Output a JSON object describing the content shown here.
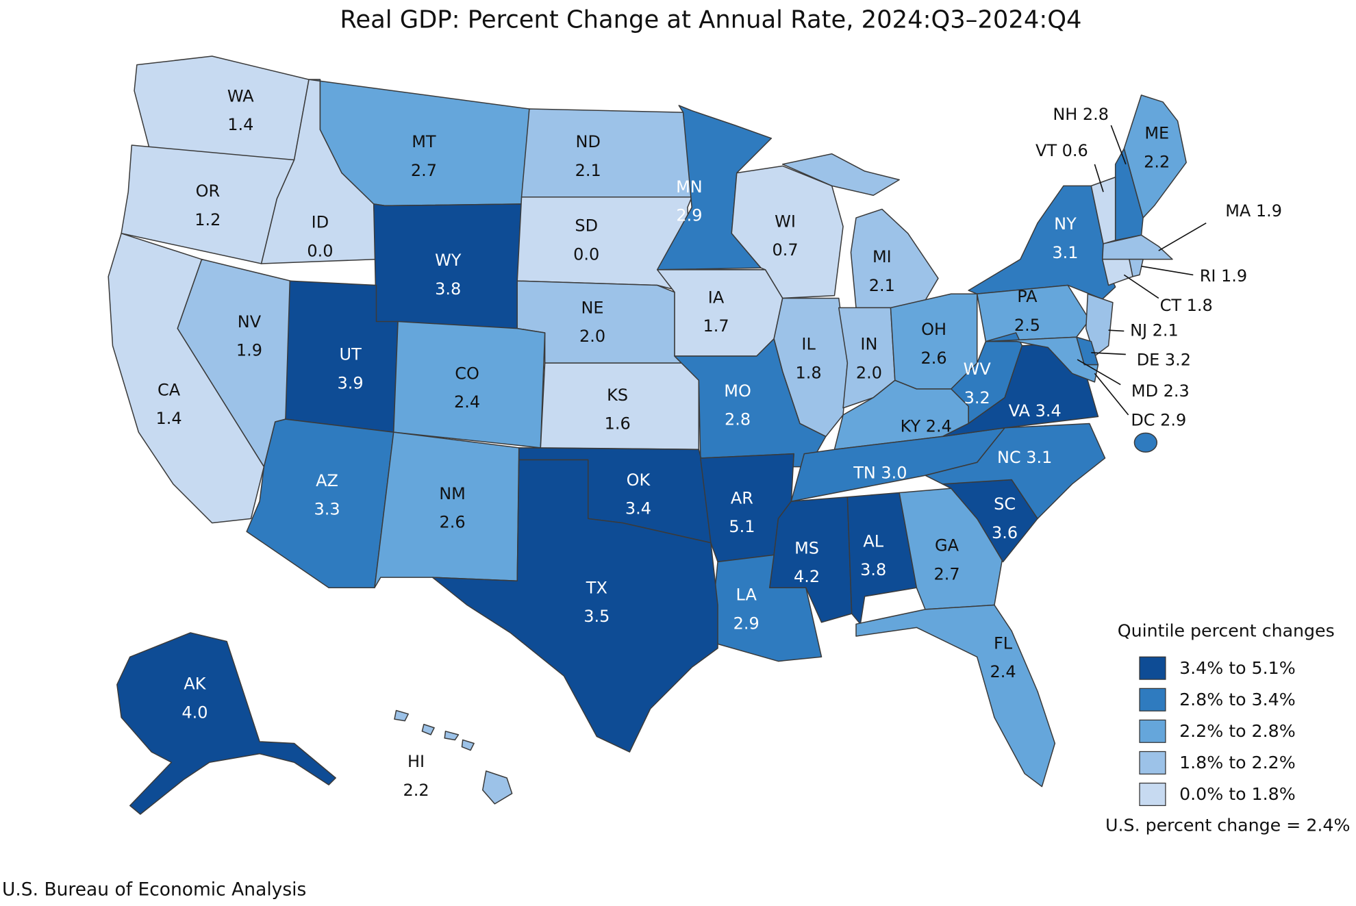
{
  "title": "Real GDP: Percent Change at Annual Rate, 2024:Q3–2024:Q4",
  "states": [
    {
      "abbr": "WA",
      "value": "1.4",
      "color": "#c7daf1"
    },
    {
      "abbr": "OR",
      "value": "1.2",
      "color": "#c7daf1"
    },
    {
      "abbr": "ID",
      "value": "0.0",
      "color": "#c7daf1"
    },
    {
      "abbr": "MT",
      "value": "2.7",
      "color": "#65a6db"
    },
    {
      "abbr": "ND",
      "value": "2.1",
      "color": "#9cc2e8"
    },
    {
      "abbr": "WY",
      "value": "3.8",
      "color": "#0e4c95"
    },
    {
      "abbr": "SD",
      "value": "0.0",
      "color": "#c7daf1"
    },
    {
      "abbr": "MN",
      "value": "2.9",
      "color": "#2f7bbf"
    },
    {
      "abbr": "WI",
      "value": "0.7",
      "color": "#c7daf1"
    },
    {
      "abbr": "MI",
      "value": "2.1",
      "color": "#9cc2e8"
    },
    {
      "abbr": "NY",
      "value": "3.1",
      "color": "#2f7bbf"
    },
    {
      "abbr": "ME",
      "value": "2.2",
      "color": "#65a6db"
    },
    {
      "abbr": "IA",
      "value": "1.7",
      "color": "#c7daf1"
    },
    {
      "abbr": "NE",
      "value": "2.0",
      "color": "#9cc2e8"
    },
    {
      "abbr": "NV",
      "value": "1.9",
      "color": "#9cc2e8"
    },
    {
      "abbr": "UT",
      "value": "3.9",
      "color": "#0e4c95"
    },
    {
      "abbr": "CO",
      "value": "2.4",
      "color": "#65a6db"
    },
    {
      "abbr": "KS",
      "value": "1.6",
      "color": "#c7daf1"
    },
    {
      "abbr": "IL",
      "value": "1.8",
      "color": "#9cc2e8"
    },
    {
      "abbr": "IN",
      "value": "2.0",
      "color": "#9cc2e8"
    },
    {
      "abbr": "OH",
      "value": "2.6",
      "color": "#65a6db"
    },
    {
      "abbr": "PA",
      "value": "2.5",
      "color": "#65a6db"
    },
    {
      "abbr": "WV",
      "value": "3.2",
      "color": "#2f7bbf"
    },
    {
      "abbr": "MO",
      "value": "2.8",
      "color": "#2f7bbf"
    },
    {
      "abbr": "CA",
      "value": "1.4",
      "color": "#c7daf1"
    },
    {
      "abbr": "AZ",
      "value": "3.3",
      "color": "#2f7bbf"
    },
    {
      "abbr": "NM",
      "value": "2.6",
      "color": "#65a6db"
    },
    {
      "abbr": "OK",
      "value": "3.4",
      "color": "#0e4c95"
    },
    {
      "abbr": "AR",
      "value": "5.1",
      "color": "#0e4c95"
    },
    {
      "abbr": "MS",
      "value": "4.2",
      "color": "#0e4c95"
    },
    {
      "abbr": "AL",
      "value": "3.8",
      "color": "#0e4c95"
    },
    {
      "abbr": "GA",
      "value": "2.7",
      "color": "#65a6db"
    },
    {
      "abbr": "SC",
      "value": "3.6",
      "color": "#0e4c95"
    },
    {
      "abbr": "LA",
      "value": "2.9",
      "color": "#2f7bbf"
    },
    {
      "abbr": "TX",
      "value": "3.5",
      "color": "#0e4c95"
    },
    {
      "abbr": "FL",
      "value": "2.4",
      "color": "#65a6db"
    },
    {
      "abbr": "AK",
      "value": "4.0",
      "color": "#0e4c95"
    },
    {
      "abbr": "HI",
      "value": "2.2",
      "color": "#9cc2e8"
    },
    {
      "abbr": "KY",
      "value": "2.4",
      "color": "#65a6db"
    },
    {
      "abbr": "TN",
      "value": "3.0",
      "color": "#2f7bbf"
    },
    {
      "abbr": "NC",
      "value": "3.1",
      "color": "#2f7bbf"
    },
    {
      "abbr": "VA",
      "value": "3.4",
      "color": "#0e4c95"
    },
    {
      "abbr": "NH",
      "value": "2.8",
      "color": "#2f7bbf"
    },
    {
      "abbr": "VT",
      "value": "0.6",
      "color": "#c7daf1"
    },
    {
      "abbr": "MA",
      "value": "1.9",
      "color": "#9cc2e8"
    },
    {
      "abbr": "RI",
      "value": "1.9",
      "color": "#9cc2e8"
    },
    {
      "abbr": "CT",
      "value": "1.8",
      "color": "#c7daf1"
    },
    {
      "abbr": "NJ",
      "value": "2.1",
      "color": "#9cc2e8"
    },
    {
      "abbr": "DE",
      "value": "3.2",
      "color": "#2f7bbf"
    },
    {
      "abbr": "MD",
      "value": "2.3",
      "color": "#65a6db"
    },
    {
      "abbr": "DC",
      "value": "2.9",
      "color": "#2f7bbf"
    }
  ],
  "legend": {
    "title": "Quintile percent changes",
    "items": [
      {
        "label": "3.4% to 5.1%",
        "color": "#0e4c95"
      },
      {
        "label": "2.8% to 3.4%",
        "color": "#2f7bbf"
      },
      {
        "label": "2.2% to 2.8%",
        "color": "#65a6db"
      },
      {
        "label": "1.8% to 2.2%",
        "color": "#9cc2e8"
      },
      {
        "label": "0.0% to 1.8%",
        "color": "#c7daf1"
      }
    ]
  },
  "us_change": "U.S. percent change = 2.4%",
  "source": "U.S. Bureau of Economic Analysis"
}
